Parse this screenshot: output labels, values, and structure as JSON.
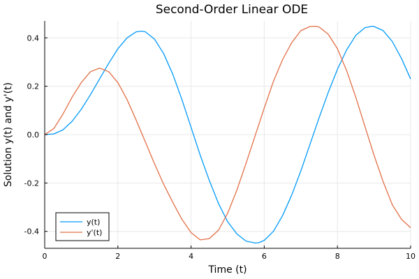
{
  "chart_data": {
    "type": "line",
    "title": "Second-Order Linear ODE",
    "xlabel": "Time (t)",
    "ylabel": "Solution y(t) and y'(t)",
    "xlim": [
      0,
      10
    ],
    "ylim": [
      -0.47,
      0.47
    ],
    "xticks": [
      0,
      2,
      4,
      6,
      8,
      10
    ],
    "yticks": [
      -0.4,
      -0.2,
      0.0,
      0.2,
      0.4
    ],
    "xtick_labels": [
      "0",
      "2",
      "4",
      "6",
      "8",
      "10"
    ],
    "ytick_labels": [
      "-0.4",
      "-0.2",
      "0.0",
      "0.2",
      "0.4"
    ],
    "grid": true,
    "legend_position": "bottom-left",
    "series": [
      {
        "name": "y(t)",
        "color": "#009af9",
        "x": [
          0,
          0.25,
          0.5,
          0.75,
          1.0,
          1.25,
          1.5,
          1.75,
          2.0,
          2.25,
          2.5,
          2.65,
          2.75,
          3.0,
          3.25,
          3.5,
          3.75,
          4.0,
          4.25,
          4.5,
          4.75,
          5.0,
          5.25,
          5.5,
          5.75,
          5.85,
          6.0,
          6.25,
          6.5,
          6.75,
          7.0,
          7.25,
          7.5,
          7.75,
          8.0,
          8.25,
          8.5,
          8.75,
          8.95,
          9.0,
          9.25,
          9.5,
          9.75,
          10.0
        ],
        "y": [
          0.0,
          0.003,
          0.02,
          0.055,
          0.105,
          0.165,
          0.23,
          0.295,
          0.355,
          0.4,
          0.425,
          0.428,
          0.425,
          0.395,
          0.335,
          0.25,
          0.145,
          0.03,
          -0.085,
          -0.19,
          -0.285,
          -0.36,
          -0.41,
          -0.44,
          -0.448,
          -0.447,
          -0.437,
          -0.4,
          -0.335,
          -0.25,
          -0.15,
          -0.04,
          0.07,
          0.175,
          0.27,
          0.35,
          0.41,
          0.442,
          0.448,
          0.447,
          0.43,
          0.385,
          0.315,
          0.23
        ]
      },
      {
        "name": "y'(t)",
        "color": "#e26f46",
        "x": [
          0,
          0.25,
          0.5,
          0.75,
          1.0,
          1.25,
          1.5,
          1.75,
          2.0,
          2.25,
          2.5,
          2.75,
          3.0,
          3.25,
          3.5,
          3.75,
          4.0,
          4.25,
          4.5,
          4.75,
          5.0,
          5.25,
          5.5,
          5.75,
          6.0,
          6.25,
          6.5,
          6.75,
          7.0,
          7.25,
          7.4,
          7.5,
          7.75,
          8.0,
          8.25,
          8.5,
          8.75,
          9.0,
          9.25,
          9.5,
          9.75,
          10.0
        ],
        "y": [
          0.0,
          0.025,
          0.085,
          0.155,
          0.215,
          0.26,
          0.275,
          0.26,
          0.215,
          0.145,
          0.06,
          -0.03,
          -0.12,
          -0.205,
          -0.28,
          -0.35,
          -0.405,
          -0.435,
          -0.43,
          -0.395,
          -0.325,
          -0.23,
          -0.12,
          -0.005,
          0.11,
          0.22,
          0.31,
          0.38,
          0.43,
          0.447,
          0.448,
          0.445,
          0.415,
          0.355,
          0.265,
          0.155,
          0.035,
          -0.085,
          -0.195,
          -0.29,
          -0.35,
          -0.385
        ]
      }
    ]
  }
}
